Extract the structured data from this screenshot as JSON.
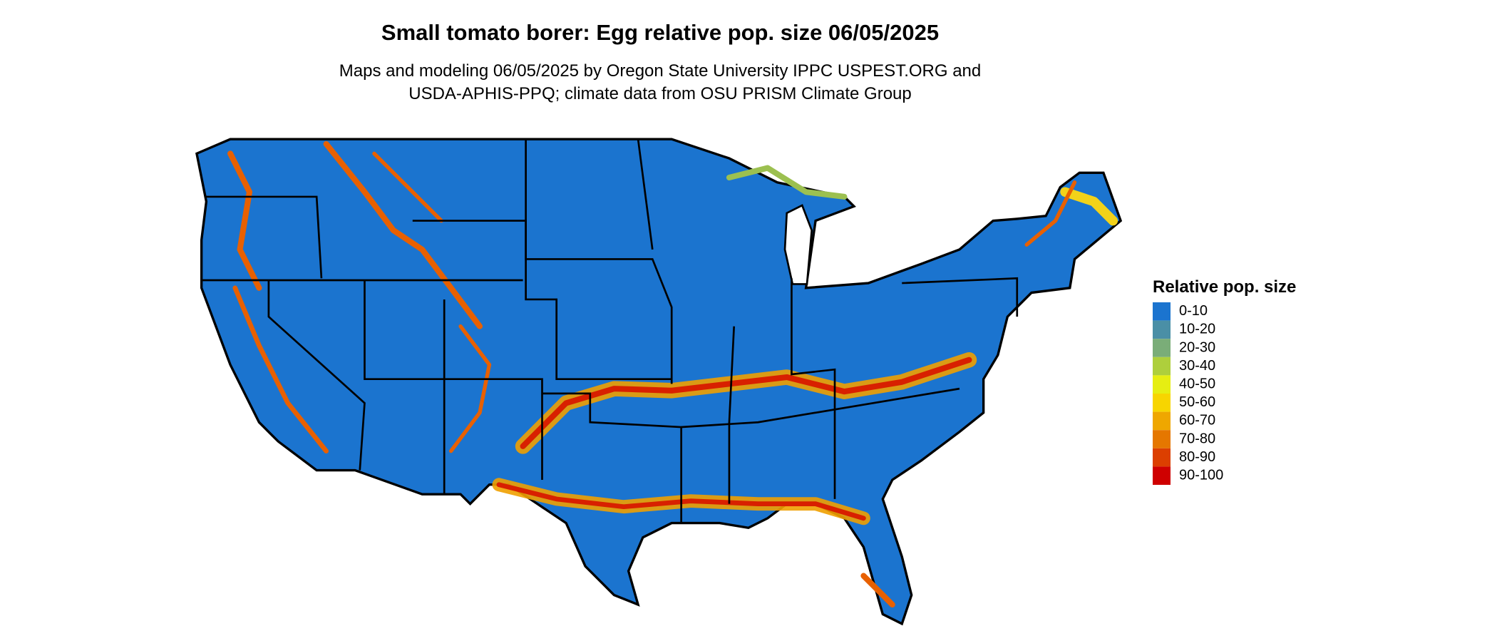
{
  "title": "Small tomato borer: Egg relative pop. size 06/05/2025",
  "subtitle": [
    "Maps and modeling 06/05/2025 by Oregon State University IPPC USPEST.ORG and",
    "USDA-APHIS-PPQ; climate data from OSU PRISM Climate Group"
  ],
  "legend": {
    "title": "Relative pop. size",
    "items": [
      {
        "label": "0-10",
        "color": "#1b74cf"
      },
      {
        "label": "10-20",
        "color": "#4a8fa6"
      },
      {
        "label": "20-30",
        "color": "#7aad78"
      },
      {
        "label": "30-40",
        "color": "#aecf3c"
      },
      {
        "label": "40-50",
        "color": "#e6ee12"
      },
      {
        "label": "50-60",
        "color": "#f7d500"
      },
      {
        "label": "60-70",
        "color": "#efa700"
      },
      {
        "label": "70-80",
        "color": "#e57700"
      },
      {
        "label": "80-90",
        "color": "#dc3f00"
      },
      {
        "label": "90-100",
        "color": "#cf0000"
      }
    ]
  }
}
